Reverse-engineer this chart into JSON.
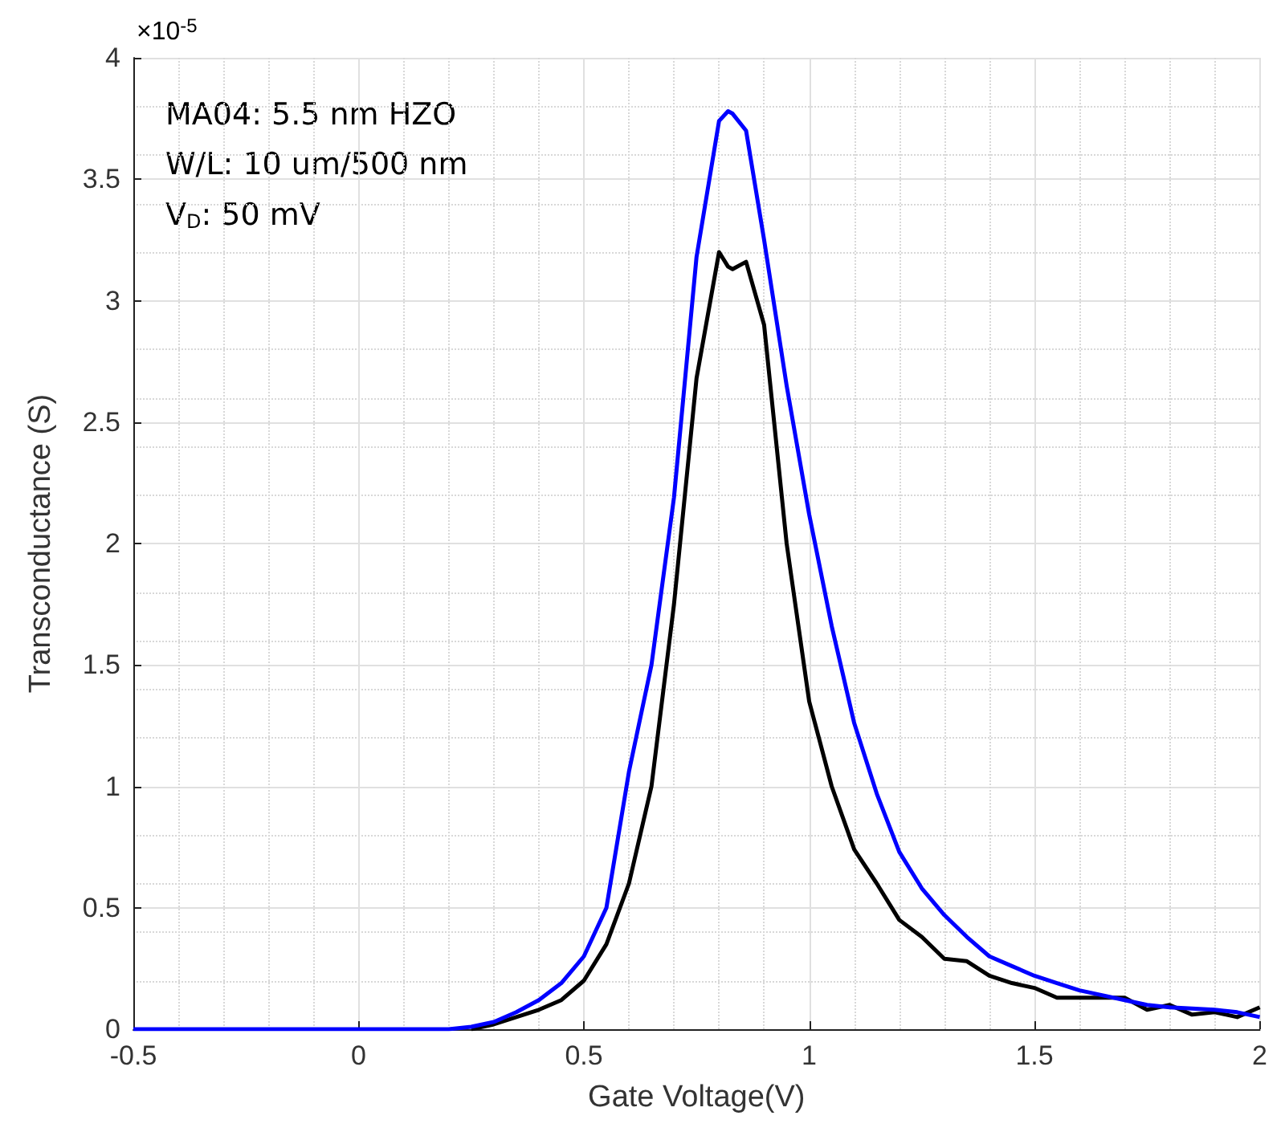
{
  "chart_data": {
    "type": "line",
    "xlabel": "Gate Voltage(V)",
    "ylabel": "Transconductance (S)",
    "annotations": [
      "×10$^{-5}$",
      "MA04: 5.5 nm HZO",
      "W/L: 10 um/500 nm",
      "V$_{D}$: 50 mV"
    ],
    "x": [
      -0.5,
      -0.25,
      0,
      0.2,
      0.25,
      0.3,
      0.35,
      0.4,
      0.45,
      0.5,
      0.55,
      0.6,
      0.65,
      0.7,
      0.75,
      0.8,
      0.82,
      0.83,
      0.86,
      0.9,
      0.95,
      1.0,
      1.05,
      1.1,
      1.15,
      1.2,
      1.25,
      1.3,
      1.35,
      1.4,
      1.45,
      1.5,
      1.55,
      1.6,
      1.65,
      1.7,
      1.75,
      1.8,
      1.85,
      1.9,
      1.95,
      2.0
    ],
    "series": [
      {
        "color": "#0000ff",
        "values": [
          0,
          0,
          0,
          0,
          0.01,
          0.03,
          0.07,
          0.12,
          0.19,
          0.3,
          0.5,
          1.06,
          1.5,
          2.19,
          3.18,
          3.74,
          3.78,
          3.77,
          3.7,
          3.25,
          2.65,
          2.12,
          1.66,
          1.26,
          0.97,
          0.73,
          0.58,
          0.47,
          0.38,
          0.3,
          0.26,
          0.22,
          0.19,
          0.16,
          0.14,
          0.12,
          0.1,
          0.09,
          0.085,
          0.08,
          0.07,
          0.05
        ]
      },
      {
        "color": "#000000",
        "values": [
          null,
          null,
          null,
          null,
          0,
          0.02,
          0.05,
          0.08,
          0.12,
          0.2,
          0.35,
          0.6,
          1.0,
          1.75,
          2.68,
          3.2,
          3.14,
          3.13,
          3.16,
          2.9,
          2.0,
          1.35,
          1.0,
          0.74,
          0.6,
          0.45,
          0.38,
          0.29,
          0.28,
          0.22,
          0.19,
          0.17,
          0.13,
          0.13,
          0.13,
          0.13,
          0.08,
          0.1,
          0.06,
          0.07,
          0.05,
          0.09
        ]
      }
    ],
    "xlim": [
      -0.5,
      2
    ],
    "xticks": [
      -0.5,
      0,
      0.5,
      1,
      1.5,
      2
    ],
    "ylim": [
      0,
      4
    ],
    "yticks": [
      0,
      0.5,
      1,
      1.5,
      2,
      2.5,
      3,
      3.5,
      4
    ],
    "grid": true,
    "marker": "none",
    "line_style": "solid"
  }
}
